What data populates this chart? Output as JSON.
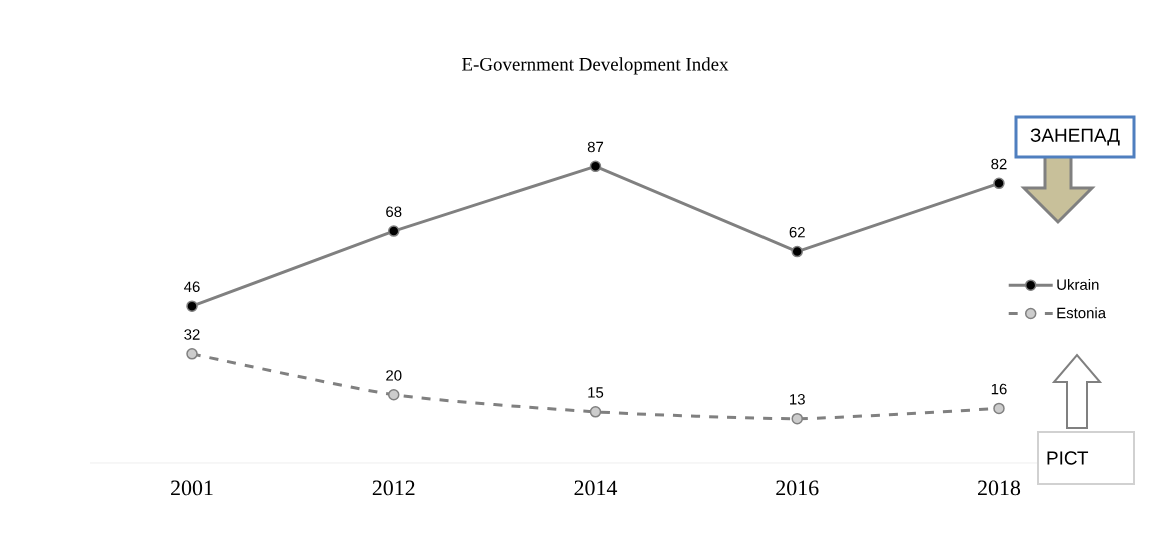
{
  "chart_data": {
    "type": "line",
    "title": "E-Government Development Index",
    "categories": [
      "2001",
      "2012",
      "2014",
      "2016",
      "2018"
    ],
    "series": [
      {
        "name": "Ukrain",
        "color": "#808080",
        "values": [
          46,
          68,
          87,
          62,
          82
        ],
        "line_style": "solid"
      },
      {
        "name": "Estonia",
        "color": "#808080",
        "values": [
          32,
          20,
          15,
          13,
          16
        ],
        "line_style": "dashed"
      }
    ],
    "tick_labels": "x",
    "data_labels": true,
    "marker": "circle",
    "legend": "right",
    "annotations": [
      "ЗАНЕПАД",
      "РІСТ"
    ]
  }
}
